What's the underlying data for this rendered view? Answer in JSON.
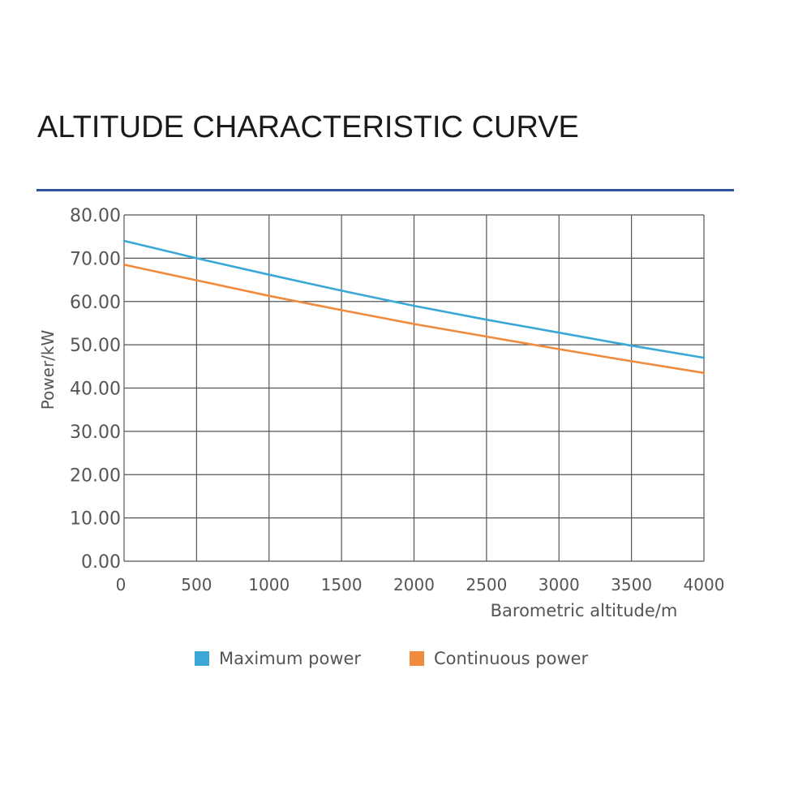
{
  "title": "ALTITUDE CHARACTERISTIC CURVE",
  "colors": {
    "accent_rule": "#2f4fa2",
    "series_max": "#3aa8d6",
    "series_cont": "#f08a3c",
    "grid": "#555555",
    "text": "#555555"
  },
  "chart_data": {
    "type": "line",
    "title": "",
    "xlabel": "Barometric altitude/m",
    "ylabel": "Power/kW",
    "xlim": [
      0,
      4000
    ],
    "ylim": [
      0,
      80
    ],
    "x_ticks": [
      0,
      500,
      1000,
      1500,
      2000,
      2500,
      3000,
      3500,
      4000
    ],
    "x_tick_labels": [
      "0",
      "500",
      "1000",
      "1500",
      "2000",
      "2500",
      "3000",
      "3500",
      "4000"
    ],
    "y_ticks": [
      0,
      10,
      20,
      30,
      40,
      50,
      60,
      70,
      80
    ],
    "y_tick_labels": [
      "0.00",
      "10.00",
      "20.00",
      "30.00",
      "40.00",
      "50.00",
      "60.00",
      "70.00",
      "80.00"
    ],
    "grid": true,
    "legend_position": "bottom",
    "series": [
      {
        "name": "Maximum power",
        "color": "#3aa8d6",
        "x": [
          0,
          500,
          1000,
          1500,
          2000,
          2500,
          3000,
          3500,
          4000
        ],
        "values": [
          74.0,
          70.0,
          66.2,
          62.5,
          59.0,
          55.8,
          52.8,
          49.8,
          47.0
        ]
      },
      {
        "name": "Continuous power",
        "color": "#f08a3c",
        "x": [
          0,
          500,
          1000,
          1500,
          2000,
          2500,
          3000,
          3500,
          4000
        ],
        "values": [
          68.5,
          64.9,
          61.3,
          58.0,
          54.8,
          51.9,
          49.0,
          46.2,
          43.5
        ]
      }
    ]
  }
}
